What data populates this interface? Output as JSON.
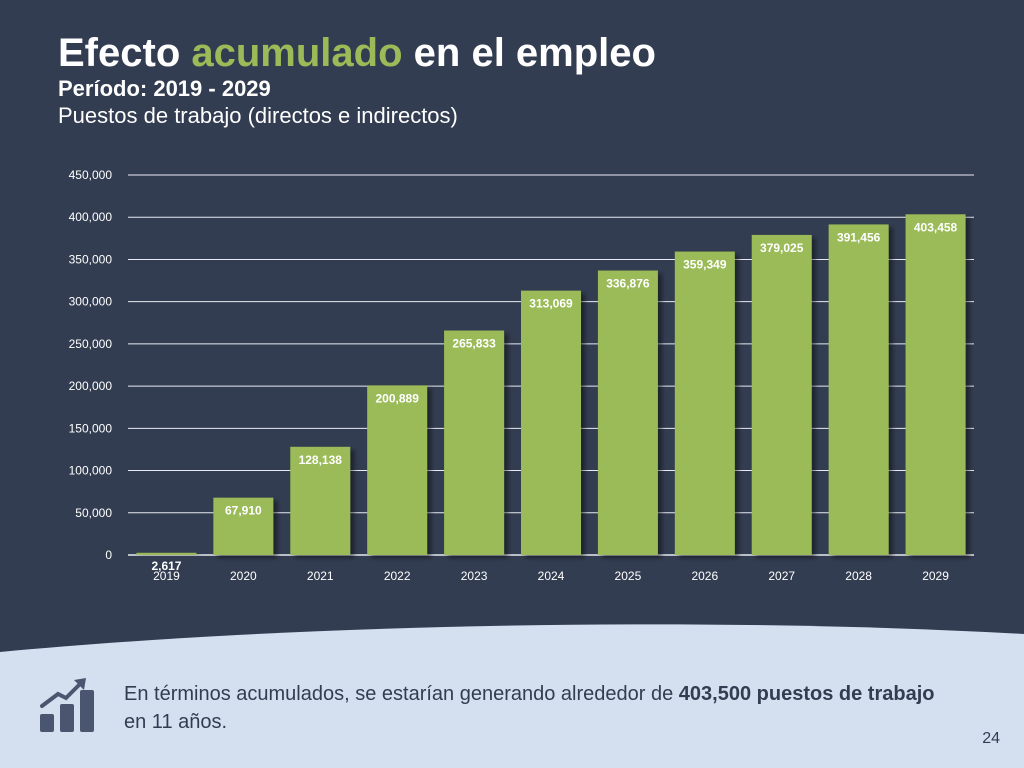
{
  "title": {
    "part1": "Efecto",
    "accent": "acumulado",
    "part2": "en el empleo",
    "period": "Período: 2019 - 2029",
    "caption": "Puestos de trabajo (directos e indirectos)"
  },
  "colors": {
    "background": "#333d51",
    "accent": "#9bbb59",
    "bar": "#9bbb59",
    "footer_bg": "#d4dff0",
    "text_dark": "#333d51"
  },
  "chart_data": {
    "type": "bar",
    "categories": [
      "2019",
      "2020",
      "2021",
      "2022",
      "2023",
      "2024",
      "2025",
      "2026",
      "2027",
      "2028",
      "2029"
    ],
    "values": [
      2617,
      67910,
      128138,
      200889,
      265833,
      313069,
      336876,
      359349,
      379025,
      391456,
      403458
    ],
    "value_labels": [
      "2,617",
      "67,910",
      "128,138",
      "200,889",
      "265,833",
      "313,069",
      "336,876",
      "359,349",
      "379,025",
      "391,456",
      "403,458"
    ],
    "yticks": [
      "0",
      "50,000",
      "100,000",
      "150,000",
      "200,000",
      "250,000",
      "300,000",
      "350,000",
      "400,000",
      "450,000"
    ],
    "ylim": [
      0,
      450000
    ],
    "grid": true,
    "title": "",
    "xlabel": "",
    "ylabel": ""
  },
  "footer": {
    "text_before": "En términos acumulados, se estarían generando alrededor de ",
    "text_bold": "403,500 puestos de trabajo",
    "text_after": " en 11 años.",
    "icon": "growth-chart-icon",
    "page_number": "24"
  }
}
